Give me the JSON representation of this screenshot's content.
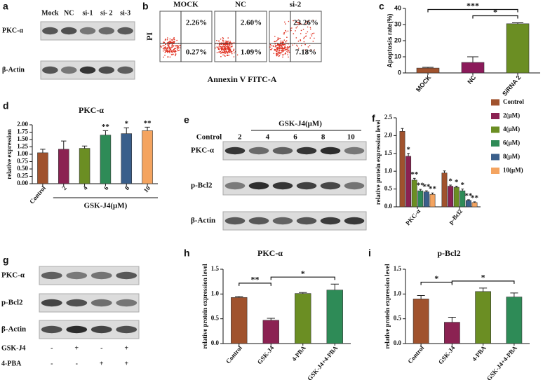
{
  "panels": {
    "a": {
      "letter": "a",
      "lanes": [
        "Mock",
        "NC",
        "si-1",
        "si- 2",
        "si-3"
      ],
      "rows": [
        "PKC-α",
        "β-Actin"
      ]
    },
    "b": {
      "letter": "b",
      "y_label": "PI",
      "x_label": "Annexin V FITC-A",
      "plots": [
        {
          "title": "MOCK",
          "upper_right": "2.26%",
          "lower_right": "0.27%"
        },
        {
          "title": "NC",
          "upper_right": "2.60%",
          "lower_right": "1.09%"
        },
        {
          "title": "si-2",
          "upper_right": "23.26%",
          "lower_right": "7.18%"
        }
      ]
    },
    "e": {
      "letter": "e",
      "treatment": "GSK-J4(μM)",
      "lanes": [
        "Control",
        "2",
        "4",
        "6",
        "8",
        "10"
      ],
      "rows": [
        "PKC-α",
        "p-Bcl2",
        "β-Actin"
      ]
    },
    "g": {
      "letter": "g",
      "rows": [
        "PKC-α",
        "p-Bcl2",
        "β-Actin"
      ],
      "conditions": [
        {
          "name": "GSK-J4",
          "signs": [
            "-",
            "+",
            "-",
            "+"
          ]
        },
        {
          "name": "4-PBA",
          "signs": [
            "-",
            "-",
            "+",
            "+"
          ]
        }
      ]
    }
  },
  "chart_data": [
    {
      "type": "bar",
      "panel_label": "c",
      "y_label": "Apoptosis rate(%)",
      "categories": [
        "MOCK",
        "NC",
        "SiRNA 2"
      ],
      "values": [
        3,
        6.5,
        30.5
      ],
      "errors": [
        0.5,
        3.5,
        0.6
      ],
      "colors": [
        "#a0522d",
        "#8b1a5a",
        "#6b8e23"
      ],
      "ylim": [
        0,
        40
      ],
      "yticks": [
        0,
        10,
        20,
        30,
        40
      ],
      "brackets": [
        {
          "from": 0,
          "to": 2,
          "label": "***"
        },
        {
          "from": 1,
          "to": 2,
          "label": "*"
        }
      ]
    },
    {
      "type": "bar",
      "panel_label": "d",
      "title": "PKC-α",
      "y_label": "relative expression",
      "x_label": "GSK-J4(μM)",
      "categories": [
        "Control",
        "2",
        "4",
        "6",
        "8",
        "10"
      ],
      "values": [
        1.05,
        1.17,
        1.2,
        1.65,
        1.7,
        1.8
      ],
      "errors": [
        0.12,
        0.28,
        0.08,
        0.15,
        0.2,
        0.12
      ],
      "colors": [
        "#a0522d",
        "#8b2252",
        "#6b8e23",
        "#2e8b57",
        "#3a5f8b",
        "#f4a460"
      ],
      "ylim": [
        0,
        2.0
      ],
      "yticks": [
        {
          "value": 0,
          "label": "0.00"
        },
        0.25,
        {
          "value": 0.5,
          "label": "0.50"
        },
        0.75,
        {
          "value": 1,
          "label": "1.00"
        },
        1.25,
        {
          "value": 1.5,
          "label": "1.50"
        },
        1.75,
        {
          "value": 2,
          "label": "2.00"
        }
      ],
      "annotations": [
        {
          "index": 3,
          "label": "**"
        },
        {
          "index": 4,
          "label": "*"
        },
        {
          "index": 5,
          "label": "**"
        }
      ]
    },
    {
      "type": "bar",
      "panel_label": "f",
      "y_label": "relative protein expression level",
      "categories": [
        "PKC-α",
        "p-Bcl2"
      ],
      "series": [
        {
          "name": "Control",
          "color": "#a0522d",
          "values": [
            2.12,
            0.95
          ],
          "errors": [
            0.08,
            0.06
          ]
        },
        {
          "name": "2(μM)",
          "color": "#8b2252",
          "values": [
            1.42,
            0.58
          ],
          "errors": [
            0.08,
            0.03
          ]
        },
        {
          "name": "4(μM)",
          "color": "#6b8e23",
          "values": [
            0.75,
            0.55
          ],
          "errors": [
            0.05,
            0.03
          ]
        },
        {
          "name": "6(μM)",
          "color": "#2e8b57",
          "values": [
            0.45,
            0.45
          ],
          "errors": [
            0.04,
            0.05
          ]
        },
        {
          "name": "8(μM)",
          "color": "#3a5f8b",
          "values": [
            0.42,
            0.18
          ],
          "errors": [
            0.03,
            0.02
          ]
        },
        {
          "name": "10(μM)",
          "color": "#f4a460",
          "values": [
            0.35,
            0.12
          ],
          "errors": [
            0.04,
            0.02
          ]
        }
      ],
      "ylim": [
        0,
        2.5
      ],
      "yticks": [
        {
          "value": 0,
          "label": "0.0"
        },
        0.5,
        {
          "value": 1,
          "label": "1.0"
        },
        1.5,
        {
          "value": 2,
          "label": "2.0"
        },
        2.5
      ],
      "annotations": [
        {
          "series": 1,
          "index": 0,
          "label": "*"
        },
        {
          "series": 2,
          "index": 0,
          "label": "**"
        },
        {
          "series": 3,
          "index": 0,
          "label": "**"
        },
        {
          "series": 4,
          "index": 0,
          "label": "**"
        },
        {
          "series": 5,
          "index": 0,
          "label": "**"
        },
        {
          "series": 1,
          "index": 1,
          "label": "*"
        },
        {
          "series": 2,
          "index": 1,
          "label": "*"
        },
        {
          "series": 3,
          "index": 1,
          "label": "*"
        },
        {
          "series": 4,
          "index": 1,
          "label": "**"
        },
        {
          "series": 5,
          "index": 1,
          "label": "**"
        }
      ],
      "legend": "right"
    },
    {
      "type": "bar",
      "panel_label": "h",
      "title": "PKC-α",
      "y_label": "relative protein expression level",
      "categories": [
        "Control",
        "GSK-J4",
        "4-PBA",
        "GSK-J4+4-PBA"
      ],
      "values": [
        0.93,
        0.47,
        1.01,
        1.08
      ],
      "errors": [
        0.02,
        0.04,
        0.02,
        0.12
      ],
      "colors": [
        "#a0522d",
        "#8b2252",
        "#6b8e23",
        "#2e8b57"
      ],
      "ylim": [
        0,
        1.5
      ],
      "yticks": [
        {
          "value": 0,
          "label": "0.0"
        },
        0.5,
        {
          "value": 1,
          "label": "1.0"
        },
        1.5
      ],
      "brackets": [
        {
          "from": 0,
          "to": 1,
          "label": "**"
        },
        {
          "from": 1,
          "to": 3,
          "label": "*"
        }
      ]
    },
    {
      "type": "bar",
      "panel_label": "i",
      "title": "p-Bcl2",
      "y_label": "relative protein expression level",
      "categories": [
        "Control",
        "GSK-J4",
        "4-PBA",
        "GSK-J4+4-PBA"
      ],
      "values": [
        0.9,
        0.43,
        1.05,
        0.94
      ],
      "errors": [
        0.07,
        0.1,
        0.07,
        0.08
      ],
      "colors": [
        "#a0522d",
        "#8b2252",
        "#6b8e23",
        "#2e8b57"
      ],
      "ylim": [
        0,
        1.5
      ],
      "yticks": [
        {
          "value": 0,
          "label": "0.0"
        },
        0.5,
        {
          "value": 1,
          "label": "1.0"
        },
        1.5
      ],
      "brackets": [
        {
          "from": 0,
          "to": 1,
          "label": "*"
        },
        {
          "from": 1,
          "to": 3,
          "label": "*"
        }
      ]
    }
  ]
}
